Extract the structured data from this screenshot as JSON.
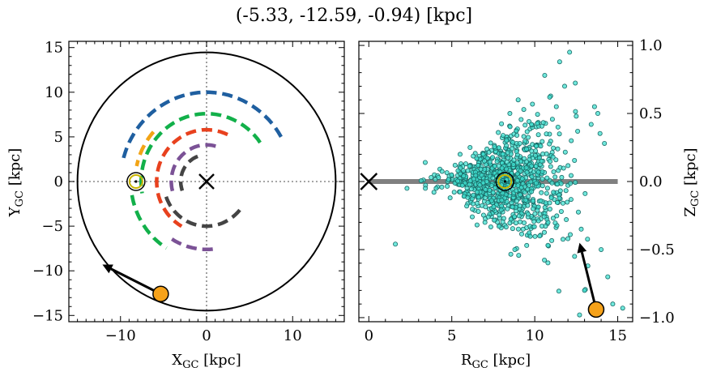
{
  "chart_data": [
    {
      "type": "scatter",
      "panel": "galactic-plane",
      "title": "(-5.33, -12.59, -0.94) [kpc]",
      "xlabel": "X",
      "xlabel_sub": "GC",
      "xlabel_unit": " [kpc]",
      "ylabel": "Y",
      "ylabel_sub": "GC",
      "ylabel_unit": " [kpc]",
      "xlim": [
        -16,
        16
      ],
      "ylim": [
        -15.7,
        15.7
      ],
      "xticks": [
        -10,
        0,
        10
      ],
      "yticks": [
        -15,
        -10,
        -5,
        0,
        5,
        10,
        15
      ],
      "xtick_labels": [
        "−10",
        "0",
        "10"
      ],
      "ytick_labels": [
        "−15",
        "−10",
        "−5",
        "0",
        "5",
        "10",
        "15"
      ],
      "boundary_circle": {
        "cx": 0,
        "cy": 0,
        "r": 15
      },
      "galactic_center": {
        "x": 0,
        "y": 0
      },
      "sun": {
        "x": -8.2,
        "y": 0
      },
      "object": {
        "x": -5.33,
        "y": -12.59
      },
      "arrow_to": {
        "x": -12.1,
        "y": -9.3
      },
      "spiral_arms": [
        {
          "color": "#1f5fa0",
          "r": 10.0,
          "theta_start_deg": 30,
          "theta_end_deg": 168
        },
        {
          "color": "#12b04a",
          "r": 7.6,
          "theta_start_deg": 35,
          "theta_end_deg": 190
        },
        {
          "color": "#12b04a",
          "r": 8.8,
          "theta_start_deg": 190,
          "theta_end_deg": 238
        },
        {
          "color": "#e8411e",
          "r": 5.8,
          "theta_start_deg": 65,
          "theta_end_deg": 240
        },
        {
          "color": "#f2a416",
          "r": 8.3,
          "theta_start_deg": 138,
          "theta_end_deg": 168
        },
        {
          "color": "#7b5296",
          "r": 4.1,
          "theta_start_deg": 75,
          "theta_end_deg": 200
        },
        {
          "color": "#7b5296",
          "r": 7.6,
          "theta_start_deg": 238,
          "theta_end_deg": 280
        },
        {
          "color": "#444444",
          "r": 3.0,
          "theta_start_deg": 110,
          "theta_end_deg": 200
        },
        {
          "color": "#444444",
          "r": 5.0,
          "theta_start_deg": 200,
          "theta_end_deg": 322
        }
      ]
    },
    {
      "type": "scatter",
      "panel": "r-z",
      "xlabel": "R",
      "xlabel_sub": "GC",
      "xlabel_unit": " [kpc]",
      "ylabel": "Z",
      "ylabel_sub": "GC",
      "ylabel_unit": " [kpc]",
      "xlim": [
        -0.6,
        15.9
      ],
      "ylim": [
        -1.03,
        1.03
      ],
      "xticks": [
        0,
        5,
        10,
        15
      ],
      "yticks": [
        -1.0,
        -0.5,
        0.0,
        0.5,
        1.0
      ],
      "xtick_labels": [
        "0",
        "5",
        "10",
        "15"
      ],
      "ytick_labels": [
        "−1.0",
        "−0.5",
        "0.0",
        "0.5",
        "1.0"
      ],
      "disk_line": {
        "x_start": 0,
        "x_end": 15,
        "z": 0
      },
      "galactic_center": {
        "x": 0,
        "z": 0
      },
      "sun": {
        "x": 8.2,
        "z": 0
      },
      "object": {
        "x": 13.7,
        "z": -0.94
      },
      "arrow_to": {
        "x": 12.7,
        "z": -0.45
      },
      "point_color": "#40e0d0",
      "points": [
        [
          8.6,
          0.06
        ],
        [
          5.2,
          0.12
        ],
        [
          6.3,
          -0.1
        ],
        [
          7.7,
          0.04
        ],
        [
          9.4,
          -0.08
        ],
        [
          10.4,
          0.15
        ],
        [
          11.0,
          -0.12
        ],
        [
          6.9,
          0.2
        ],
        [
          8.0,
          -0.18
        ],
        [
          9.1,
          0.28
        ],
        [
          7.2,
          -0.26
        ],
        [
          10.7,
          0.35
        ],
        [
          11.6,
          -0.22
        ],
        [
          12.2,
          0.3
        ],
        [
          12.8,
          -0.35
        ],
        [
          9.8,
          0.42
        ],
        [
          10.3,
          -0.4
        ],
        [
          8.5,
          0.5
        ],
        [
          11.3,
          0.55
        ],
        [
          12.5,
          0.48
        ],
        [
          13.4,
          0.42
        ],
        [
          14.0,
          -0.5
        ],
        [
          13.2,
          -0.62
        ],
        [
          12.4,
          -0.55
        ],
        [
          10.9,
          0.62
        ],
        [
          11.8,
          0.7
        ],
        [
          12.1,
          0.95
        ],
        [
          11.5,
          0.88
        ],
        [
          10.6,
          0.78
        ],
        [
          13.6,
          0.55
        ],
        [
          14.4,
          -0.7
        ],
        [
          14.7,
          -0.9
        ],
        [
          15.3,
          -0.93
        ],
        [
          13.0,
          -0.8
        ],
        [
          12.7,
          -0.98
        ],
        [
          4.2,
          0.03
        ],
        [
          3.4,
          0.14
        ],
        [
          2.3,
          -0.05
        ],
        [
          1.6,
          -0.46
        ],
        [
          4.9,
          -0.12
        ],
        [
          5.7,
          0.08
        ],
        [
          6.5,
          0.17
        ],
        [
          7.4,
          -0.14
        ],
        [
          8.9,
          0.22
        ],
        [
          9.6,
          -0.24
        ],
        [
          10.1,
          0.26
        ],
        [
          11.1,
          0.18
        ],
        [
          11.9,
          -0.28
        ],
        [
          6.1,
          0.25
        ],
        [
          7.0,
          -0.3
        ],
        [
          8.3,
          0.3
        ],
        [
          9.3,
          -0.35
        ],
        [
          9.9,
          -0.2
        ],
        [
          10.8,
          -0.3
        ],
        [
          11.4,
          0.4
        ],
        [
          12.0,
          -0.42
        ],
        [
          13.8,
          0.5
        ],
        [
          14.2,
          0.28
        ],
        [
          9.0,
          0.6
        ],
        [
          8.8,
          -0.5
        ],
        [
          7.8,
          0.36
        ],
        [
          6.6,
          -0.22
        ],
        [
          5.5,
          0.2
        ],
        [
          5.9,
          -0.18
        ]
      ]
    }
  ]
}
